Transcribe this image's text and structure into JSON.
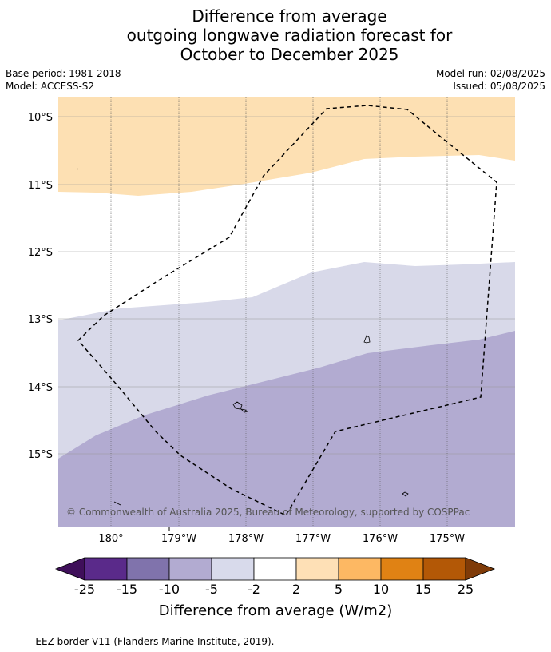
{
  "title": {
    "line1": "Difference from average",
    "line2": "outgoing longwave radiation forecast for",
    "line3": "October to December 2025"
  },
  "meta": {
    "base_period": "Base period: 1981-2018",
    "model": "Model: ACCESS-S2",
    "model_run": "Model run: 02/08/2025",
    "issued": "Issued: 05/08/2025"
  },
  "map": {
    "lat_labels": [
      "10°S",
      "11°S",
      "12°S",
      "13°S",
      "14°S",
      "15°S"
    ],
    "lon_labels": [
      "180°",
      "179°W",
      "178°W",
      "177°W",
      "176°W",
      "175°W"
    ],
    "copyright": "© Commonwealth of Australia 2025, Bureau of Meteorology, supported by COSPPac",
    "region_colors": {
      "above_2_to_5": "#fde0b3",
      "between_minus2_and_2": "#ffffff",
      "minus5_to_minus2": "#d8d9e9",
      "minus10_to_minus5": "#b2abd1"
    }
  },
  "colorbar": {
    "tick_labels": [
      "-25",
      "-15",
      "-10",
      "-5",
      "-2",
      "2",
      "5",
      "10",
      "15",
      "25"
    ],
    "colors": [
      "#3f0f5a",
      "#5a2a8a",
      "#8073ac",
      "#b2abd1",
      "#d8daeb",
      "#ffffff",
      "#fee0b6",
      "#fdb863",
      "#e08214",
      "#b35806",
      "#7f3b08"
    ],
    "title": "Difference from average (W/m2)"
  },
  "footnote": "--  --  -- EEZ border V11 (Flanders Marine Institute, 2019)."
}
